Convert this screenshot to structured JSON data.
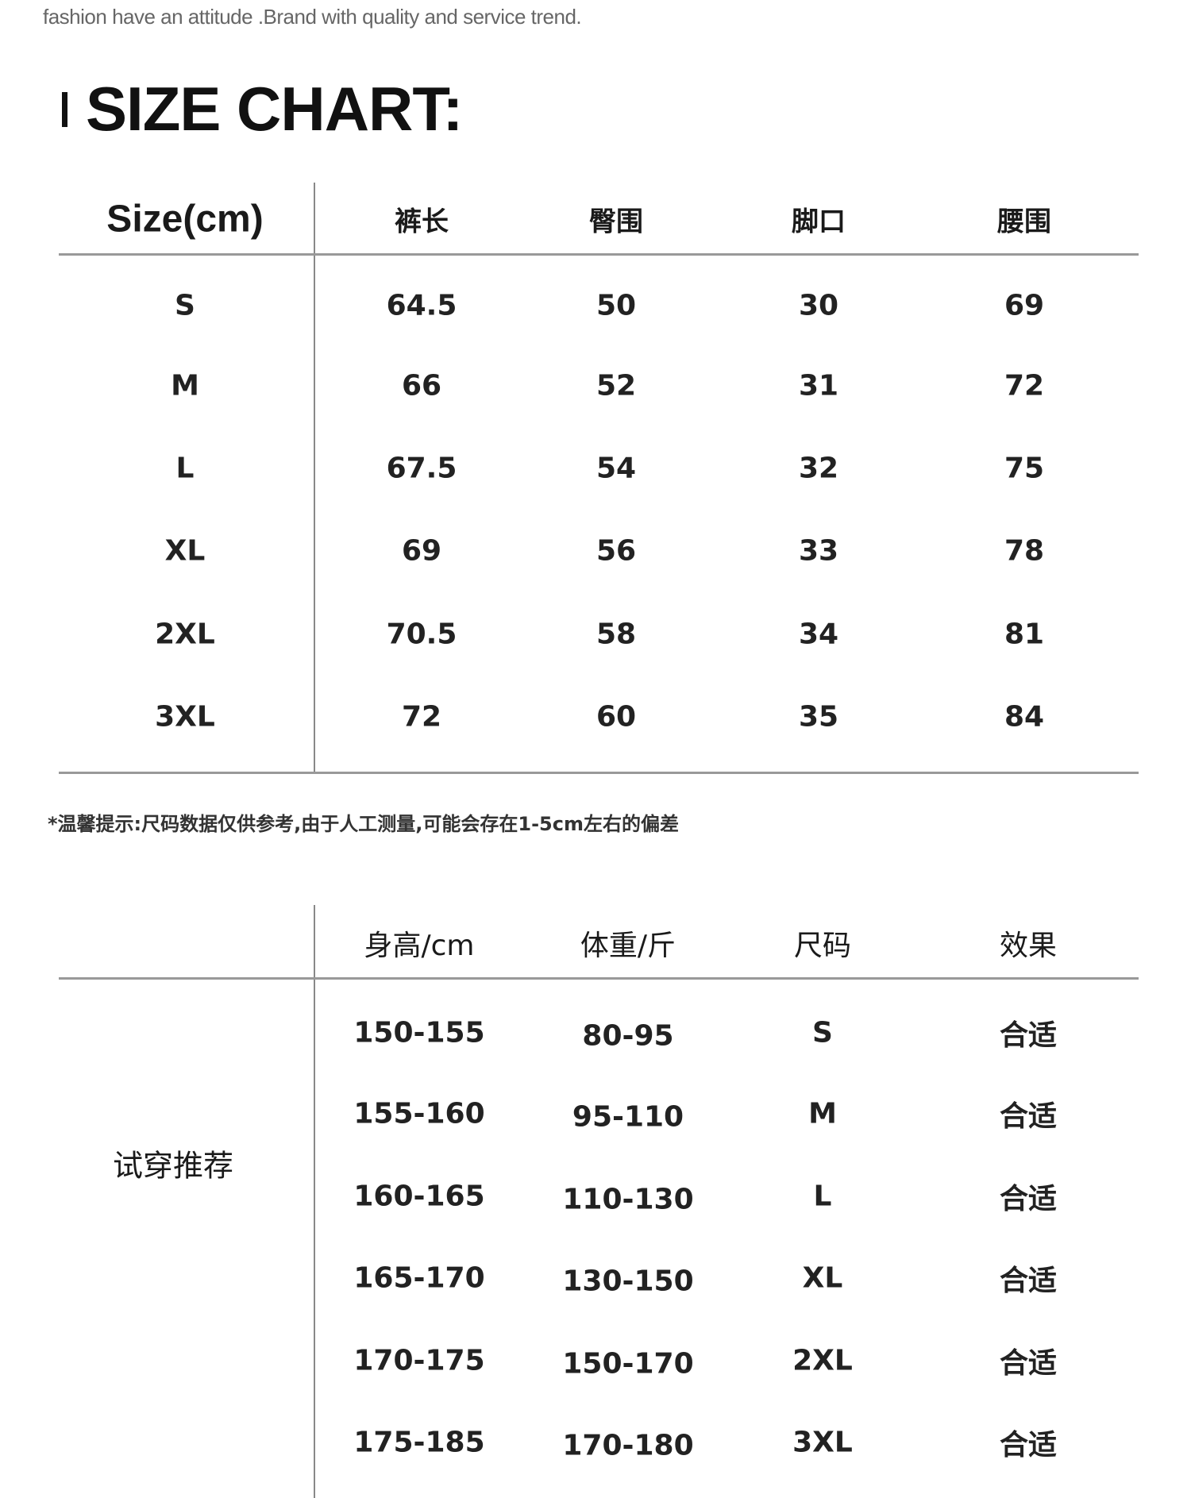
{
  "tagline": "fashion have an attitude .Brand with quality and service trend.",
  "title": "SIZE CHART:",
  "size_table": {
    "headers": [
      "Size(cm)",
      "裤长",
      "臀围",
      "脚口",
      "腰围"
    ],
    "rows": [
      [
        "S",
        "64.5",
        "50",
        "30",
        "69"
      ],
      [
        "M",
        "66",
        "52",
        "31",
        "72"
      ],
      [
        "L",
        "67.5",
        "54",
        "32",
        "75"
      ],
      [
        "XL",
        "69",
        "56",
        "33",
        "78"
      ],
      [
        "2XL",
        "70.5",
        "58",
        "34",
        "81"
      ],
      [
        "3XL",
        "72",
        "60",
        "35",
        "84"
      ]
    ]
  },
  "note": "*温馨提示:尺码数据仅供参考,由于人工测量,可能会存在1-5cm左右的偏差",
  "fit_table": {
    "row_label": "试穿推荐",
    "headers": [
      "身高/cm",
      "体重/斤",
      "尺码",
      "效果"
    ],
    "rows": [
      [
        "150-155",
        "80-95",
        "S",
        "合适"
      ],
      [
        "155-160",
        "95-110",
        "M",
        "合适"
      ],
      [
        "160-165",
        "110-130",
        "L",
        "合适"
      ],
      [
        "165-170",
        "130-150",
        "XL",
        "合适"
      ],
      [
        "170-175",
        "150-170",
        "2XL",
        "合适"
      ],
      [
        "175-185",
        "170-180",
        "3XL",
        "合适"
      ]
    ]
  }
}
